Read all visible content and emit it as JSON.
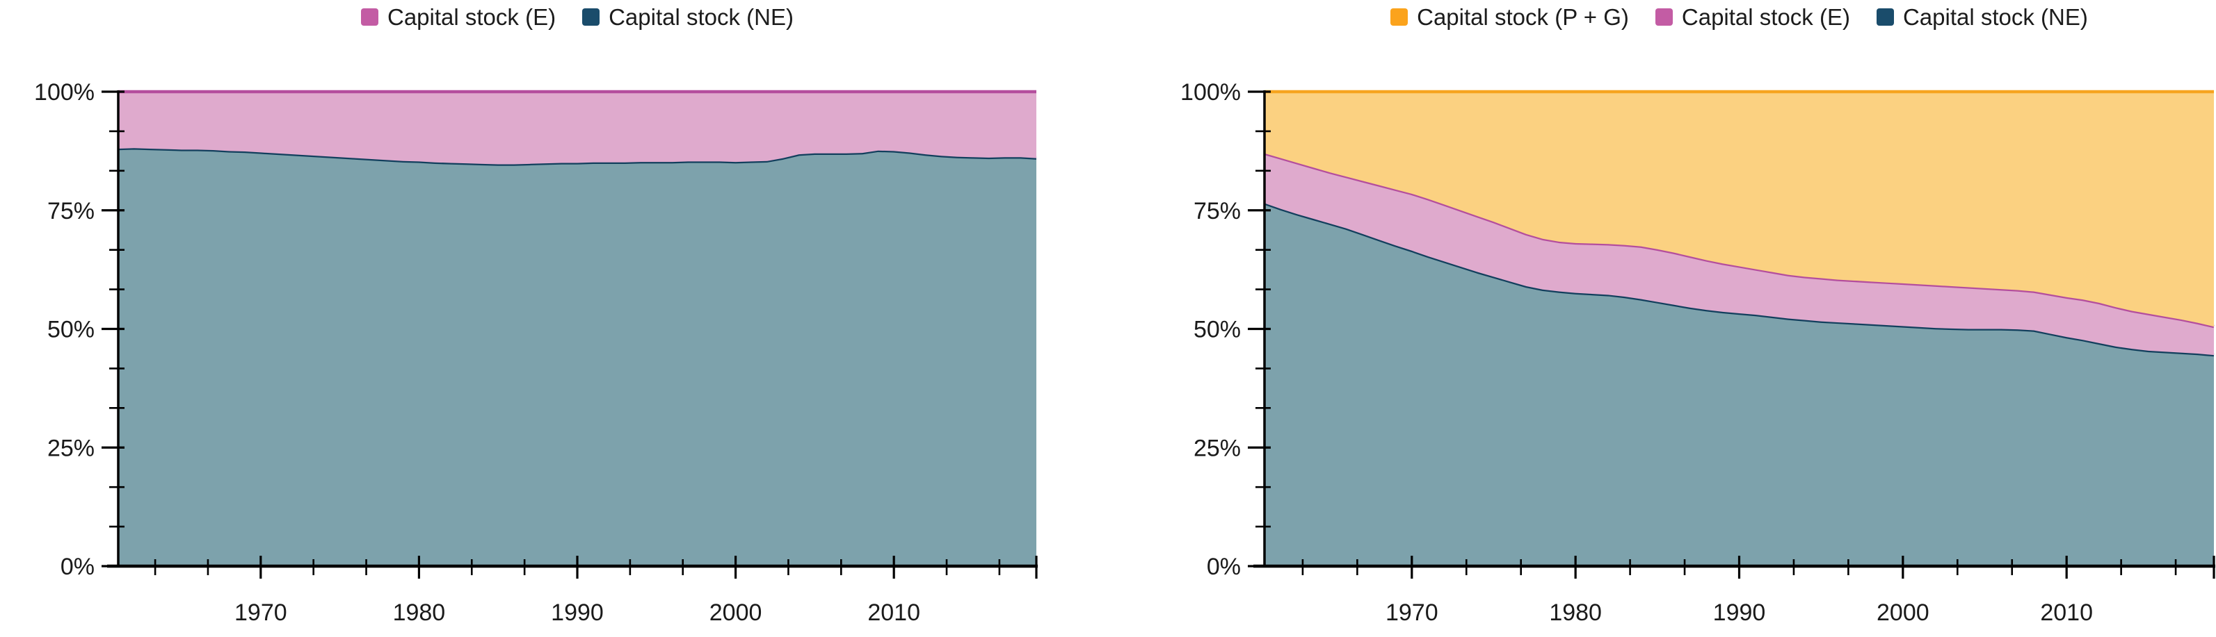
{
  "years": [
    1961,
    1962,
    1963,
    1964,
    1965,
    1966,
    1967,
    1968,
    1969,
    1970,
    1971,
    1972,
    1973,
    1974,
    1975,
    1976,
    1977,
    1978,
    1979,
    1980,
    1981,
    1982,
    1983,
    1984,
    1985,
    1986,
    1987,
    1988,
    1989,
    1990,
    1991,
    1992,
    1993,
    1994,
    1995,
    1996,
    1997,
    1998,
    1999,
    2000,
    2001,
    2002,
    2003,
    2004,
    2005,
    2006,
    2007,
    2008,
    2009,
    2010,
    2011,
    2012,
    2013,
    2014,
    2015,
    2016,
    2017,
    2018,
    2019
  ],
  "chart_data": [
    {
      "type": "area",
      "stacked": true,
      "units": "percent",
      "title": "",
      "xlabel": "",
      "ylabel": "",
      "ylim": [
        0,
        100
      ],
      "xlim": [
        1961,
        2019
      ],
      "grid": false,
      "legend_position": "top-center",
      "y_axis": {
        "major_ticks": [
          0,
          25,
          50,
          75,
          100
        ],
        "labels": [
          "0%",
          "25%",
          "50%",
          "75%",
          "100%"
        ],
        "minor_step": 8.3333
      },
      "x_axis": {
        "major_ticks": [
          1970,
          1980,
          1990,
          2000,
          2010
        ],
        "labels": [
          "1970",
          "1980",
          "1990",
          "2000",
          "2010"
        ],
        "minor_step": 3.3333,
        "end_cap_tick": true
      },
      "series": [
        {
          "name": "Capital stock (NE)",
          "legend_color": "#1A4C6B",
          "line_color": "#123F5D",
          "fill_color": "#7DA2AC",
          "values": [
            88.0,
            88.1,
            88.0,
            87.9,
            87.8,
            87.8,
            87.7,
            87.5,
            87.4,
            87.2,
            87.0,
            86.8,
            86.6,
            86.4,
            86.2,
            86.0,
            85.8,
            85.6,
            85.4,
            85.3,
            85.1,
            85.0,
            84.9,
            84.8,
            84.7,
            84.7,
            84.8,
            84.9,
            85.0,
            85.0,
            85.1,
            85.1,
            85.1,
            85.2,
            85.2,
            85.2,
            85.3,
            85.3,
            85.3,
            85.2,
            85.3,
            85.4,
            86.0,
            86.8,
            87.0,
            87.0,
            87.0,
            87.1,
            87.6,
            87.5,
            87.2,
            86.8,
            86.5,
            86.3,
            86.2,
            86.1,
            86.2,
            86.2,
            86.0
          ]
        },
        {
          "name": "Capital stock (E)",
          "legend_color": "#C35CA4",
          "line_color": "#B44E9D",
          "fill_color": "#DFAACD",
          "values": [
            12.0,
            11.9,
            12.0,
            12.1,
            12.2,
            12.2,
            12.3,
            12.5,
            12.6,
            12.8,
            13.0,
            13.2,
            13.4,
            13.6,
            13.8,
            14.0,
            14.2,
            14.4,
            14.6,
            14.7,
            14.9,
            15.0,
            15.1,
            15.2,
            15.3,
            15.3,
            15.2,
            15.1,
            15.0,
            15.0,
            14.9,
            14.9,
            14.9,
            14.8,
            14.8,
            14.8,
            14.7,
            14.7,
            14.7,
            14.8,
            14.7,
            14.6,
            14.0,
            13.2,
            13.0,
            13.0,
            13.0,
            12.9,
            12.4,
            12.5,
            12.8,
            13.2,
            13.5,
            13.7,
            13.8,
            13.9,
            13.8,
            13.8,
            14.0
          ]
        }
      ]
    },
    {
      "type": "area",
      "stacked": true,
      "units": "percent",
      "title": "",
      "xlabel": "",
      "ylabel": "",
      "ylim": [
        0,
        100
      ],
      "xlim": [
        1961,
        2019
      ],
      "grid": false,
      "legend_position": "top-center",
      "y_axis": {
        "major_ticks": [
          0,
          25,
          50,
          75,
          100
        ],
        "labels": [
          "0%",
          "25%",
          "50%",
          "75%",
          "100%"
        ],
        "minor_step": 8.3333
      },
      "x_axis": {
        "major_ticks": [
          1970,
          1980,
          1990,
          2000,
          2010
        ],
        "labels": [
          "1970",
          "1980",
          "1990",
          "2000",
          "2010"
        ],
        "minor_step": 3.3333,
        "end_cap_tick": true
      },
      "series": [
        {
          "name": "Capital stock (NE)",
          "legend_color": "#1A4C6B",
          "line_color": "#123F5D",
          "fill_color": "#7DA2AC",
          "values": [
            76.5,
            75.3,
            74.2,
            73.2,
            72.2,
            71.2,
            70.0,
            68.8,
            67.6,
            66.5,
            65.3,
            64.2,
            63.1,
            62.0,
            61.0,
            60.0,
            59.0,
            58.3,
            57.9,
            57.6,
            57.4,
            57.2,
            56.8,
            56.3,
            55.7,
            55.1,
            54.5,
            54.0,
            53.6,
            53.3,
            53.0,
            52.6,
            52.2,
            51.9,
            51.6,
            51.4,
            51.2,
            51.0,
            50.8,
            50.6,
            50.4,
            50.2,
            50.1,
            50.0,
            50.0,
            50.0,
            49.9,
            49.7,
            49.0,
            48.3,
            47.7,
            47.0,
            46.3,
            45.8,
            45.4,
            45.2,
            45.0,
            44.8,
            44.5
          ]
        },
        {
          "name": "Capital stock (E)",
          "legend_color": "#C35CA4",
          "line_color": "#B44E9D",
          "fill_color": "#DFAACD",
          "values": [
            10.5,
            10.7,
            10.8,
            10.8,
            10.8,
            10.9,
            11.2,
            11.5,
            11.8,
            12.0,
            12.1,
            12.0,
            11.9,
            11.8,
            11.6,
            11.3,
            11.0,
            10.7,
            10.5,
            10.5,
            10.6,
            10.7,
            10.9,
            11.1,
            11.1,
            11.0,
            10.8,
            10.5,
            10.2,
            9.9,
            9.6,
            9.4,
            9.2,
            9.1,
            9.1,
            9.0,
            9.0,
            9.0,
            9.0,
            9.0,
            9.0,
            9.0,
            8.9,
            8.8,
            8.6,
            8.4,
            8.3,
            8.2,
            8.3,
            8.4,
            8.5,
            8.5,
            8.3,
            8.0,
            7.8,
            7.4,
            7.0,
            6.5,
            6.0
          ]
        },
        {
          "name": "Capital stock (P + G)",
          "legend_color": "#FBA31C",
          "line_color": "#F6A41F",
          "fill_color": "#FBD181",
          "values": [
            13.0,
            14.0,
            15.0,
            16.0,
            17.0,
            17.9,
            18.8,
            19.7,
            20.6,
            21.5,
            22.6,
            23.8,
            25.0,
            26.2,
            27.4,
            28.7,
            30.0,
            31.0,
            31.6,
            31.9,
            32.0,
            32.1,
            32.3,
            32.6,
            33.2,
            33.9,
            34.7,
            35.5,
            36.2,
            36.8,
            37.4,
            38.0,
            38.6,
            39.0,
            39.3,
            39.6,
            39.8,
            40.0,
            40.2,
            40.4,
            40.6,
            40.8,
            41.0,
            41.2,
            41.4,
            41.6,
            41.8,
            42.1,
            42.7,
            43.3,
            43.8,
            44.5,
            45.4,
            46.2,
            46.8,
            47.4,
            48.0,
            48.7,
            49.5
          ]
        }
      ]
    }
  ]
}
